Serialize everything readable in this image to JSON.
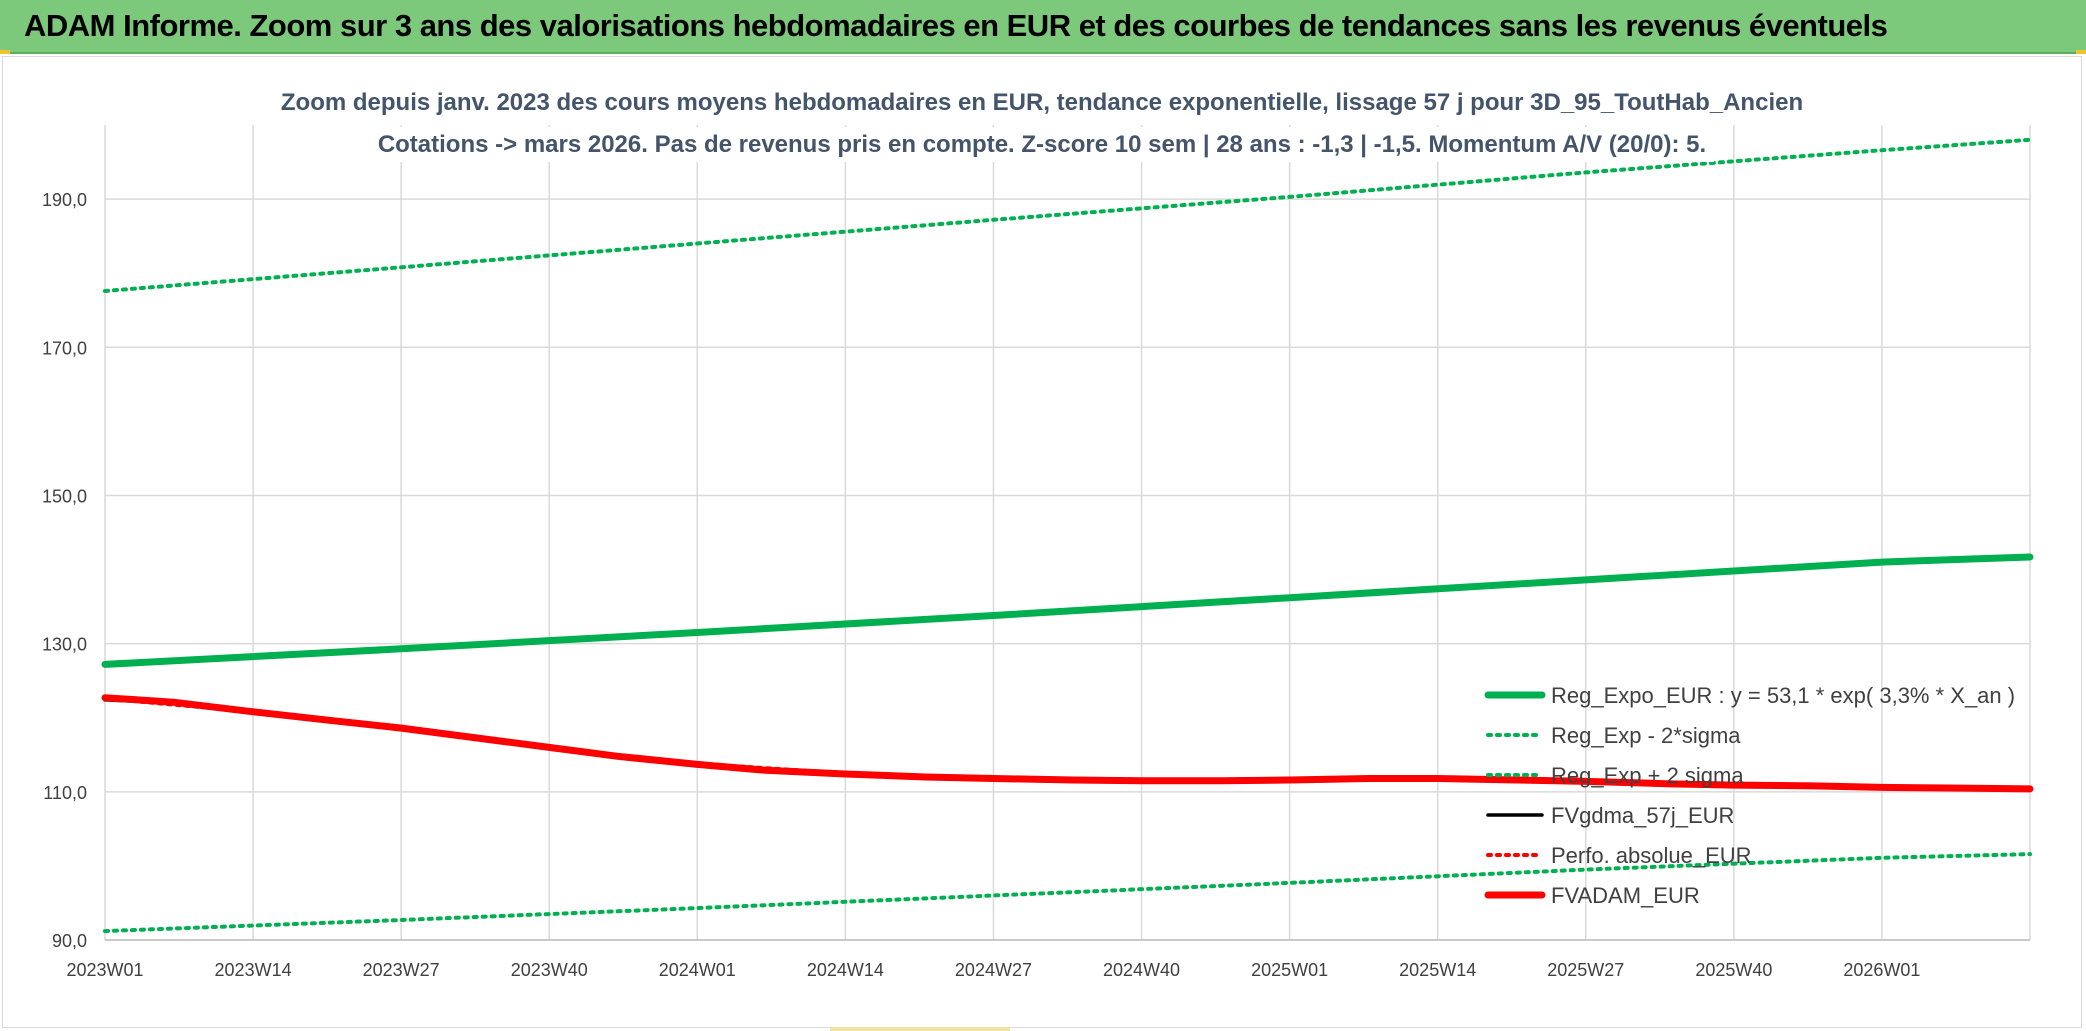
{
  "header": {
    "title": "ADAM Informe. Zoom sur 3 ans des valorisations hebdomadaires en EUR et des courbes de tendances sans les revenus éventuels"
  },
  "colors": {
    "banner": "#7dc97b",
    "trend": "#00b050",
    "price": "#000000",
    "adam": "#ff0000",
    "grid": "#d9d9d9",
    "axis_text": "#404040",
    "title_text": "#44546a"
  },
  "chart_data": {
    "type": "line",
    "title": "Zoom depuis janv. 2023 des cours moyens hebdomadaires en EUR, tendance exponentielle, lissage 57 j pour 3D_95_ToutHab_Ancien",
    "subtitle": "Cotations -> mars 2026. Pas de revenus pris en compte. Z-score 10 sem | 28 ans : -1,3 | -1,5. Momentum A/V (20/0): 5.",
    "xlabel": "",
    "ylabel": "",
    "ylim": [
      90,
      200
    ],
    "yticks": [
      90,
      110,
      130,
      150,
      170,
      190
    ],
    "ytick_labels": [
      "90,0",
      "110,0",
      "130,0",
      "150,0",
      "170,0",
      "190,0"
    ],
    "x_range": [
      0,
      169
    ],
    "xticks": [
      0,
      13,
      26,
      39,
      52,
      65,
      78,
      91,
      104,
      117,
      130,
      143,
      156
    ],
    "xtick_labels": [
      "2023W01",
      "2023W14",
      "2023W27",
      "2023W40",
      "2024W01",
      "2024W14",
      "2024W27",
      "2024W40",
      "2025W01",
      "2025W14",
      "2025W27",
      "2025W40",
      "2026W01"
    ],
    "grid": true,
    "legend_position": "bottom-right",
    "series": [
      {
        "name": "Reg_Expo_EUR : y = 53,1 * exp( 3,3% *  X_an )",
        "style": "solid-thick",
        "color": "#00b050",
        "x": [
          0,
          26,
          52,
          78,
          104,
          130,
          156,
          169
        ],
        "values": [
          127.2,
          129.3,
          131.5,
          133.8,
          136.2,
          138.6,
          141.0,
          141.7
        ]
      },
      {
        "name": "Reg_Exp - 2*sigma",
        "style": "dotted",
        "color": "#00b050",
        "x": [
          0,
          26,
          52,
          78,
          104,
          130,
          156,
          169
        ],
        "values": [
          91.2,
          92.7,
          94.3,
          96.0,
          97.7,
          99.5,
          101.1,
          101.6
        ]
      },
      {
        "name": "Reg_Exp + 2 sigma",
        "style": "dotted",
        "color": "#00b050",
        "x": [
          0,
          26,
          52,
          78,
          104,
          130,
          156,
          169
        ],
        "values": [
          177.6,
          180.8,
          184.0,
          187.2,
          190.3,
          193.6,
          196.6,
          198.0
        ]
      },
      {
        "name": "FVgdma_57j_EUR",
        "style": "solid",
        "color": "#000000",
        "x": [
          0,
          6,
          13,
          20,
          26,
          33,
          39,
          45,
          52,
          58,
          65,
          72,
          78,
          85,
          91,
          98,
          104,
          111,
          117,
          124,
          130,
          137,
          143,
          150,
          156,
          163,
          169
        ],
        "values": [
          122.4,
          122.0,
          120.9,
          119.8,
          118.8,
          117.4,
          116.1,
          114.9,
          113.9,
          113.0,
          112.6,
          112.2,
          111.9,
          111.7,
          111.5,
          111.5,
          111.6,
          111.9,
          111.9,
          111.7,
          111.5,
          111.2,
          111.0,
          110.9,
          110.7,
          110.6,
          110.5
        ]
      },
      {
        "name": "Perfo. absolue_EUR",
        "style": "dotted",
        "color": "#ff0000",
        "x": [
          0,
          13,
          26,
          39,
          52,
          65,
          78,
          91,
          104,
          117,
          130,
          143,
          156,
          169
        ],
        "values": [
          122.6,
          120.8,
          118.8,
          116.0,
          113.8,
          112.5,
          111.8,
          111.5,
          111.6,
          111.8,
          111.5,
          110.9,
          110.7,
          110.5
        ]
      },
      {
        "name": "FVADAM_EUR",
        "style": "solid-thick",
        "color": "#ff0000",
        "x": [
          0,
          6,
          13,
          20,
          26,
          33,
          39,
          45,
          52,
          58,
          65,
          72,
          78,
          85,
          91,
          98,
          104,
          111,
          117,
          124,
          130,
          137,
          143,
          150,
          156,
          163,
          169
        ],
        "values": [
          122.7,
          122.1,
          120.8,
          119.6,
          118.6,
          117.2,
          116.0,
          114.8,
          113.7,
          112.9,
          112.4,
          112.0,
          111.8,
          111.6,
          111.5,
          111.5,
          111.6,
          111.8,
          111.8,
          111.6,
          111.4,
          111.1,
          110.9,
          110.8,
          110.6,
          110.5,
          110.4
        ]
      }
    ]
  }
}
